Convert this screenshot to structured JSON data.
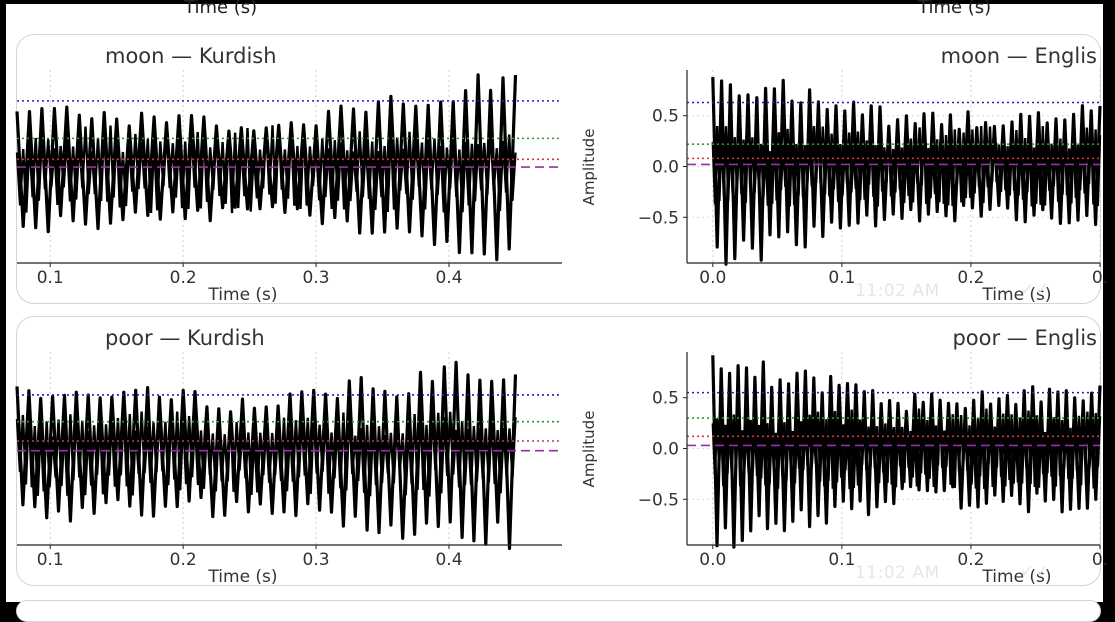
{
  "top_partial": {
    "left_label": "Time (s)",
    "right_label": "Time (s)"
  },
  "timestamp": "11:02 AM",
  "chart_data": [
    {
      "type": "line",
      "title": "moon — Kurdish",
      "xlabel": "Time (s)",
      "ylabel": "",
      "xlim": [
        0.075,
        0.485
      ],
      "ylim": [
        -0.85,
        0.9
      ],
      "xticks": [
        0.1,
        0.2,
        0.3,
        0.4
      ],
      "yticks": [],
      "grid": true,
      "waveform": {
        "x_start": 0.075,
        "x_end": 0.45,
        "cycles": 40,
        "env_start": 0.55,
        "env_mid": 0.35,
        "env_end": 0.85,
        "wobble": 0.15,
        "seed": 3
      },
      "reference_lines": [
        {
          "style": "dotted",
          "color": "#1f1fbf",
          "y": 0.62
        },
        {
          "style": "dotted",
          "color": "#2a9a2a",
          "y": 0.28
        },
        {
          "style": "dotted",
          "color": "#cc3b3b",
          "y": 0.09
        },
        {
          "style": "dashed",
          "color": "#9a2ea8",
          "y": 0.02
        }
      ]
    },
    {
      "type": "line",
      "title": "moon — Englis",
      "xlabel": "Time (s)",
      "ylabel": "Amplitude",
      "xlim": [
        -0.02,
        0.3
      ],
      "ylim": [
        -0.95,
        0.95
      ],
      "xticks": [
        0.0,
        0.1,
        0.2,
        0.3
      ],
      "xticklabels": [
        "0.0",
        "0.1",
        "0.2",
        "0."
      ],
      "yticks": [
        0.5,
        0.0,
        -0.5
      ],
      "yticklabels": [
        "0.5",
        "0.0",
        "−0.5"
      ],
      "grid": true,
      "waveform": {
        "x_start": 0.0,
        "x_end": 0.3,
        "cycles": 44,
        "env_start": 0.88,
        "env_mid": 0.45,
        "env_end": 0.5,
        "wobble": 0.18,
        "seed": 7
      },
      "reference_lines": [
        {
          "style": "dotted",
          "color": "#1f1fbf",
          "y": 0.63
        },
        {
          "style": "dotted",
          "color": "#2a9a2a",
          "y": 0.22
        },
        {
          "style": "dotted",
          "color": "#cc3b3b",
          "y": 0.08
        },
        {
          "style": "dashed",
          "color": "#9a2ea8",
          "y": 0.02
        }
      ]
    },
    {
      "type": "line",
      "title": "poor — Kurdish",
      "xlabel": "Time (s)",
      "ylabel": "",
      "xlim": [
        0.075,
        0.485
      ],
      "ylim": [
        -0.85,
        0.95
      ],
      "xticks": [
        0.1,
        0.2,
        0.3,
        0.4
      ],
      "yticks": [],
      "grid": true,
      "waveform": {
        "x_start": 0.075,
        "x_end": 0.45,
        "cycles": 42,
        "env_start": 0.55,
        "env_mid": 0.5,
        "env_end": 0.8,
        "wobble": 0.2,
        "seed": 11
      },
      "reference_lines": [
        {
          "style": "dotted",
          "color": "#1f1fbf",
          "y": 0.55
        },
        {
          "style": "dotted",
          "color": "#2a9a2a",
          "y": 0.3
        },
        {
          "style": "dotted",
          "color": "#cc3b3b",
          "y": 0.12
        },
        {
          "style": "dashed",
          "color": "#9a2ea8",
          "y": 0.03
        }
      ]
    },
    {
      "type": "line",
      "title": "poor — Englis",
      "xlabel": "Time (s)",
      "ylabel": "Amplitude",
      "xlim": [
        -0.02,
        0.3
      ],
      "ylim": [
        -0.95,
        0.95
      ],
      "xticks": [
        0.0,
        0.1,
        0.2,
        0.3
      ],
      "xticklabels": [
        "0.0",
        "0.1",
        "0.2",
        "0."
      ],
      "yticks": [
        0.5,
        0.0,
        -0.5
      ],
      "yticklabels": [
        "0.5",
        "0.0",
        "−0.5"
      ],
      "grid": true,
      "waveform": {
        "x_start": 0.0,
        "x_end": 0.3,
        "cycles": 46,
        "env_start": 0.88,
        "env_mid": 0.45,
        "env_end": 0.55,
        "wobble": 0.18,
        "seed": 19
      },
      "reference_lines": [
        {
          "style": "dotted",
          "color": "#1f1fbf",
          "y": 0.55
        },
        {
          "style": "dotted",
          "color": "#2a9a2a",
          "y": 0.3
        },
        {
          "style": "dotted",
          "color": "#cc3b3b",
          "y": 0.12
        },
        {
          "style": "dashed",
          "color": "#9a2ea8",
          "y": 0.03
        }
      ]
    }
  ]
}
